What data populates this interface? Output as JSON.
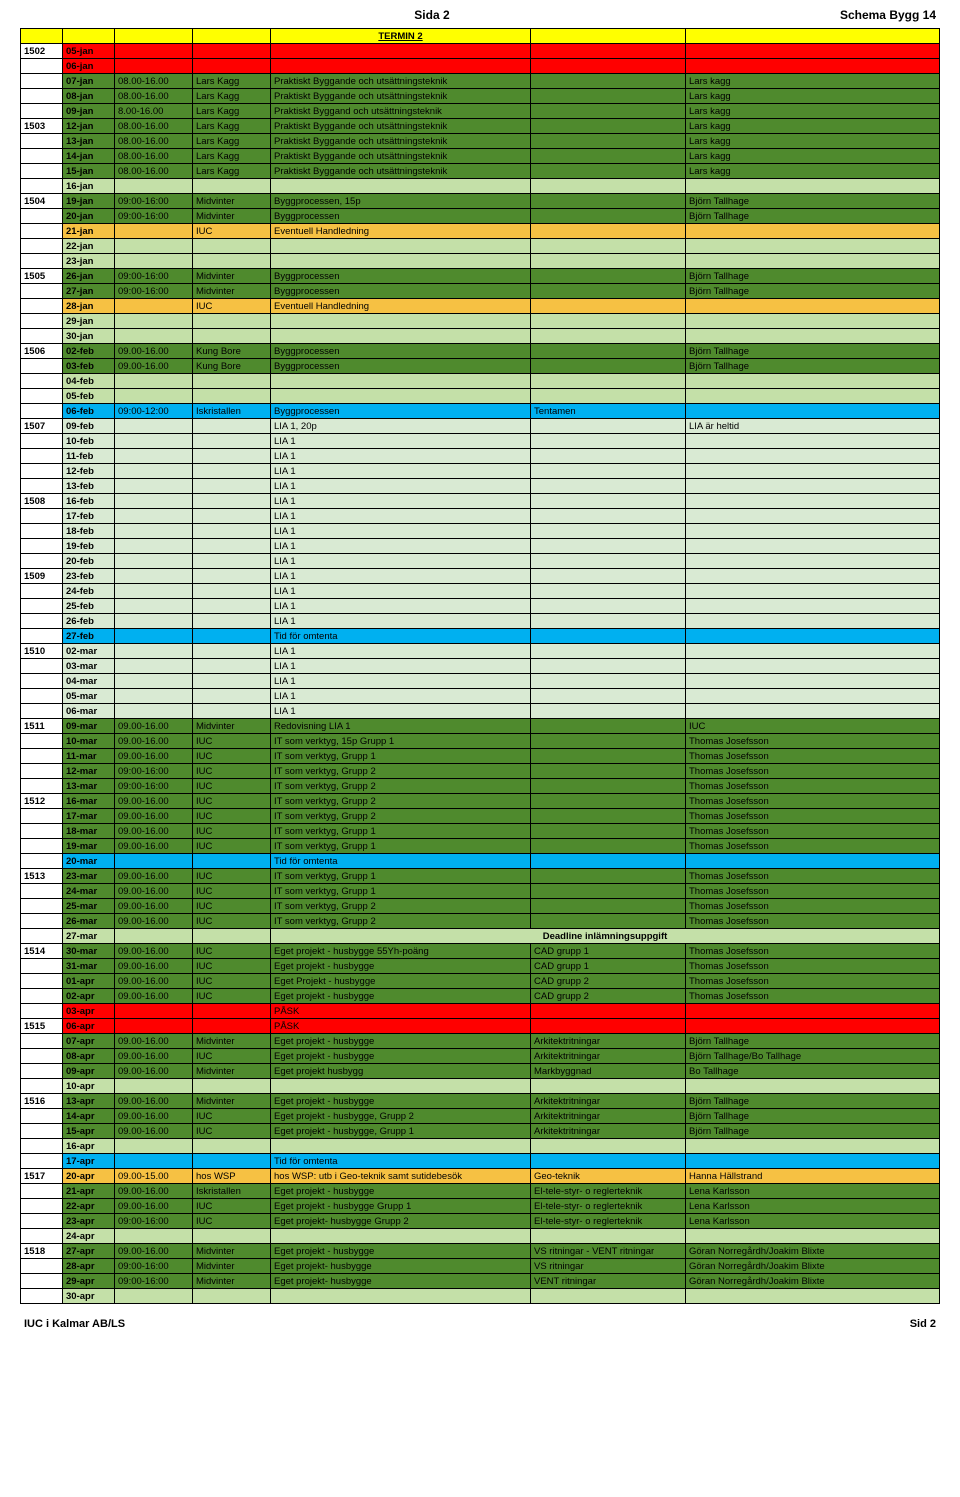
{
  "header": {
    "left": "",
    "center": "Sida 2",
    "right": "Schema Bygg 14"
  },
  "footer": {
    "left": "IUC i Kalmar AB/LS",
    "right": "Sid 2"
  },
  "termin_label": "TERMIN 2",
  "colors": {
    "red": "#ff0000",
    "yellow": "#ffff00",
    "orange": "#f6c143",
    "darkgreen": "#4f8a2d",
    "lightgreen": "#c4e0a8",
    "palegreen": "#d9ead3",
    "blue": "#00b0f0",
    "white": "#ffffff"
  },
  "rows": [
    {
      "week": "1502",
      "date": "05-jan",
      "bg": "red"
    },
    {
      "date": "06-jan",
      "bg": "red"
    },
    {
      "date": "07-jan",
      "time": "08.00-16.00",
      "room": "Lars Kagg",
      "subject": "Praktiskt Byggande och utsättningsteknik",
      "teacher": "Lars kagg",
      "bg": "darkgreen"
    },
    {
      "date": "08-jan",
      "time": "08.00-16.00",
      "room": "Lars Kagg",
      "subject": "Praktiskt Byggande och utsättningsteknik",
      "teacher": "Lars kagg",
      "bg": "darkgreen"
    },
    {
      "date": "09-jan",
      "time": "8.00-16.00",
      "room": "Lars Kagg",
      "subject": "Praktiskt Byggand och utsättningsteknik",
      "teacher": "Lars kagg",
      "bg": "darkgreen"
    },
    {
      "week": "1503",
      "date": "12-jan",
      "time": "08.00-16.00",
      "room": "Lars Kagg",
      "subject": "Praktiskt Byggande och utsättningsteknik",
      "teacher": "Lars kagg",
      "bg": "darkgreen"
    },
    {
      "date": "13-jan",
      "time": "08.00-16.00",
      "room": "Lars Kagg",
      "subject": "Praktiskt Byggande och utsättningsteknik",
      "teacher": "Lars kagg",
      "bg": "darkgreen"
    },
    {
      "date": "14-jan",
      "time": "08.00-16.00",
      "room": "Lars Kagg",
      "subject": "Praktiskt Byggande och utsättningsteknik",
      "teacher": "Lars kagg",
      "bg": "darkgreen"
    },
    {
      "date": "15-jan",
      "time": "08.00-16.00",
      "room": "Lars Kagg",
      "subject": "Praktiskt Byggande och utsättningsteknik",
      "teacher": "Lars kagg",
      "bg": "darkgreen"
    },
    {
      "date": "16-jan",
      "bg": "lightgreen"
    },
    {
      "week": "1504",
      "date": "19-jan",
      "time": "09:00-16:00",
      "room": "Midvinter",
      "subject": "Byggprocessen, 15p",
      "teacher": "Björn Tallhage",
      "bg": "darkgreen"
    },
    {
      "date": "20-jan",
      "time": "09:00-16:00",
      "room": "Midvinter",
      "subject": "Byggprocessen",
      "teacher": "Björn Tallhage",
      "bg": "darkgreen"
    },
    {
      "date": "21-jan",
      "room": "IUC",
      "subject": "Eventuell Handledning",
      "bg": "orange"
    },
    {
      "date": "22-jan",
      "bg": "lightgreen"
    },
    {
      "date": "23-jan",
      "bg": "lightgreen"
    },
    {
      "week": "1505",
      "date": "26-jan",
      "time": "09:00-16:00",
      "room": "Midvinter",
      "subject": "Byggprocessen",
      "teacher": "Björn Tallhage",
      "bg": "darkgreen"
    },
    {
      "date": "27-jan",
      "time": "09:00-16:00",
      "room": "Midvinter",
      "subject": "Byggprocessen",
      "teacher": "Björn Tallhage",
      "bg": "darkgreen"
    },
    {
      "date": "28-jan",
      "room": "IUC",
      "subject": "Eventuell Handledning",
      "bg": "orange"
    },
    {
      "date": "29-jan",
      "bg": "lightgreen"
    },
    {
      "date": "30-jan",
      "bg": "lightgreen"
    },
    {
      "week": "1506",
      "date": "02-feb",
      "time": "09.00-16.00",
      "room": "Kung Bore",
      "subject": "Byggprocessen",
      "teacher": "Björn Tallhage",
      "bg": "darkgreen"
    },
    {
      "date": "03-feb",
      "time": "09.00-16.00",
      "room": "Kung Bore",
      "subject": "Byggprocessen",
      "teacher": "Björn Tallhage",
      "bg": "darkgreen"
    },
    {
      "date": "04-feb",
      "bg": "lightgreen"
    },
    {
      "date": "05-feb",
      "bg": "lightgreen"
    },
    {
      "date": "06-feb",
      "time": "09:00-12:00",
      "room": "Iskristallen",
      "subject": "Byggprocessen",
      "note": "Tentamen",
      "bg": "blue"
    },
    {
      "week": "1507",
      "date": "09-feb",
      "subject": "LIA 1, 20p",
      "teacher": "LIA är heltid",
      "bg": "palegreen"
    },
    {
      "date": "10-feb",
      "subject": "LIA 1",
      "bg": "palegreen"
    },
    {
      "date": "11-feb",
      "subject": "LIA 1",
      "bg": "palegreen"
    },
    {
      "date": "12-feb",
      "subject": "LIA 1",
      "bg": "palegreen"
    },
    {
      "date": "13-feb",
      "subject": "LIA 1",
      "bg": "palegreen"
    },
    {
      "week": "1508",
      "date": "16-feb",
      "subject": "LIA 1",
      "bg": "palegreen"
    },
    {
      "date": "17-feb",
      "subject": "LIA 1",
      "bg": "palegreen"
    },
    {
      "date": "18-feb",
      "subject": "LIA 1",
      "bg": "palegreen"
    },
    {
      "date": "19-feb",
      "subject": "LIA 1",
      "bg": "palegreen"
    },
    {
      "date": "20-feb",
      "subject": "LIA 1",
      "bg": "palegreen"
    },
    {
      "week": "1509",
      "date": "23-feb",
      "subject": "LIA 1",
      "bg": "palegreen"
    },
    {
      "date": "24-feb",
      "subject": "LIA 1",
      "bg": "palegreen"
    },
    {
      "date": "25-feb",
      "subject": "LIA 1",
      "bg": "palegreen"
    },
    {
      "date": "26-feb",
      "subject": "LIA 1",
      "bg": "palegreen"
    },
    {
      "date": "27-feb",
      "subject": "Tid för omtenta",
      "bg": "blue"
    },
    {
      "week": "1510",
      "date": "02-mar",
      "subject": "LIA 1",
      "bg": "palegreen"
    },
    {
      "date": "03-mar",
      "subject": "LIA 1",
      "bg": "palegreen"
    },
    {
      "date": "04-mar",
      "subject": "LIA 1",
      "bg": "palegreen"
    },
    {
      "date": "05-mar",
      "subject": "LIA 1",
      "bg": "palegreen"
    },
    {
      "date": "06-mar",
      "subject": "LIA 1",
      "bg": "palegreen"
    },
    {
      "week": "1511",
      "date": "09-mar",
      "time": "09.00-16.00",
      "room": "Midvinter",
      "subject": "Redovisning LIA 1",
      "teacher": "IUC",
      "bg": "darkgreen"
    },
    {
      "date": "10-mar",
      "time": "09.00-16.00",
      "room": "IUC",
      "subject": "IT som verktyg, 15p Grupp 1",
      "teacher": "Thomas Josefsson",
      "bg": "darkgreen"
    },
    {
      "date": "11-mar",
      "time": "09.00-16.00",
      "room": "IUC",
      "subject": "IT som verktyg, Grupp 1",
      "teacher": "Thomas Josefsson",
      "bg": "darkgreen"
    },
    {
      "date": "12-mar",
      "time": "09:00-16:00",
      "room": "IUC",
      "subject": "IT som verktyg, Grupp 2",
      "teacher": "Thomas Josefsson",
      "bg": "darkgreen"
    },
    {
      "date": "13-mar",
      "time": "09:00-16:00",
      "room": "IUC",
      "subject": "IT som verktyg, Grupp 2",
      "teacher": "Thomas Josefsson",
      "bg": "darkgreen"
    },
    {
      "week": "1512",
      "date": "16-mar",
      "time": "09.00-16.00",
      "room": "IUC",
      "subject": "IT som verktyg, Grupp 2",
      "teacher": "Thomas Josefsson",
      "bg": "darkgreen"
    },
    {
      "date": "17-mar",
      "time": "09.00-16.00",
      "room": "IUC",
      "subject": "IT som verktyg, Grupp 2",
      "teacher": "Thomas Josefsson",
      "bg": "darkgreen"
    },
    {
      "date": "18-mar",
      "time": "09.00-16.00",
      "room": "IUC",
      "subject": "IT som verktyg, Grupp 1",
      "teacher": "Thomas Josefsson",
      "bg": "darkgreen"
    },
    {
      "date": "19-mar",
      "time": "09.00-16.00",
      "room": "IUC",
      "subject": "IT som verktyg, Grupp 1",
      "teacher": "Thomas Josefsson",
      "bg": "darkgreen"
    },
    {
      "date": "20-mar",
      "subject": "Tid för omtenta",
      "bg": "blue"
    },
    {
      "week": "1513",
      "date": "23-mar",
      "time": "09.00-16.00",
      "room": "IUC",
      "subject": "IT som verktyg, Grupp 1",
      "teacher": "Thomas Josefsson",
      "bg": "darkgreen"
    },
    {
      "date": "24-mar",
      "time": "09.00-16.00",
      "room": "IUC",
      "subject": "IT som verktyg, Grupp 1",
      "teacher": "Thomas Josefsson",
      "bg": "darkgreen"
    },
    {
      "date": "25-mar",
      "time": "09.00-16.00",
      "room": "IUC",
      "subject": "IT som verktyg, Grupp 2",
      "teacher": "Thomas Josefsson",
      "bg": "darkgreen"
    },
    {
      "date": "26-mar",
      "time": "09.00-16.00",
      "room": "IUC",
      "subject": "IT som verktyg, Grupp 2",
      "teacher": "Thomas Josefsson",
      "bg": "darkgreen"
    },
    {
      "date": "27-mar",
      "bg": "lightgreen",
      "deadline": "Deadline inlämningsuppgift"
    },
    {
      "week": "1514",
      "date": "30-mar",
      "time": "09.00-16.00",
      "room": "IUC",
      "subject": "Eget projekt - husbygge 55Yh-poäng",
      "note": "CAD grupp 1",
      "teacher": "Thomas Josefsson",
      "bg": "darkgreen"
    },
    {
      "date": "31-mar",
      "time": "09.00-16.00",
      "room": "IUC",
      "subject": "Eget projekt - husbygge",
      "note": "CAD grupp 1",
      "teacher": "Thomas Josefsson",
      "bg": "darkgreen"
    },
    {
      "date": "01-apr",
      "time": "09.00-16.00",
      "room": "IUC",
      "subject": "Eget Projekt - husbygge",
      "note": "CAD grupp 2",
      "teacher": "Thomas Josefsson",
      "bg": "darkgreen"
    },
    {
      "date": "02-apr",
      "time": "09.00-16.00",
      "room": "IUC",
      "subject": "Eget projekt - husbygge",
      "note": "CAD grupp 2",
      "teacher": "Thomas Josefsson",
      "bg": "darkgreen"
    },
    {
      "date": "03-apr",
      "subject": "PÅSK",
      "bg": "red"
    },
    {
      "week": "1515",
      "date": "06-apr",
      "subject": "PÅSK",
      "bg": "red"
    },
    {
      "date": "07-apr",
      "time": "09.00-16.00",
      "room": "Midvinter",
      "subject": "Eget projekt - husbygge",
      "note": "Arkitektritningar",
      "teacher": "Björn Tallhage",
      "bg": "darkgreen"
    },
    {
      "date": "08-apr",
      "time": "09.00-16.00",
      "room": "IUC",
      "subject": "Eget projekt - husbygge",
      "note": "Arkitektritningar",
      "teacher": "Björn Tallhage/Bo Tallhage",
      "bg": "darkgreen"
    },
    {
      "date": "09-apr",
      "time": "09.00-16.00",
      "room": "Midvinter",
      "subject": "Eget projekt husbygg",
      "note": "Markbyggnad",
      "teacher": "Bo Tallhage",
      "bg": "darkgreen"
    },
    {
      "date": "10-apr",
      "bg": "lightgreen"
    },
    {
      "week": "1516",
      "date": "13-apr",
      "time": "09.00-16.00",
      "room": "Midvinter",
      "subject": "Eget projekt - husbygge",
      "note": "Arkitektritningar",
      "teacher": "Björn Tallhage",
      "bg": "darkgreen"
    },
    {
      "date": "14-apr",
      "time": "09.00-16.00",
      "room": "IUC",
      "subject": "Eget projekt - husbygge, Grupp 2",
      "note": "Arkitektritningar",
      "teacher": "Björn Tallhage",
      "bg": "darkgreen"
    },
    {
      "date": "15-apr",
      "time": "09.00-16.00",
      "room": "IUC",
      "subject": "Eget projekt - husbygge, Grupp 1",
      "note": "Arkitektritningar",
      "teacher": "Björn Tallhage",
      "bg": "darkgreen"
    },
    {
      "date": "16-apr",
      "bg": "lightgreen"
    },
    {
      "date": "17-apr",
      "subject": "Tid för omtenta",
      "bg": "blue"
    },
    {
      "week": "1517",
      "date": "20-apr",
      "time": "09.00-15.00",
      "room": "hos WSP",
      "subject": "hos WSP: utb i Geo-teknik samt sutidebesök",
      "note": "Geo-teknik",
      "teacher": "Hanna Hällstrand",
      "bg": "orange"
    },
    {
      "date": "21-apr",
      "time": "09.00-16.00",
      "room": "Iskristallen",
      "subject": "Eget projekt - husbygge",
      "note": "El-tele-styr- o reglerteknik",
      "teacher": "Lena Karlsson",
      "bg": "darkgreen"
    },
    {
      "date": "22-apr",
      "time": "09.00-16.00",
      "room": "IUC",
      "subject": "Eget projekt - husbygge Grupp 1",
      "note": "El-tele-styr- o reglerteknik",
      "teacher": "Lena Karlsson",
      "bg": "darkgreen"
    },
    {
      "date": "23-apr",
      "time": "09:00-16:00",
      "room": "IUC",
      "subject": "Eget projekt- husbygge Grupp 2",
      "note": "El-tele-styr- o reglerteknik",
      "teacher": "Lena Karlsson",
      "bg": "darkgreen"
    },
    {
      "date": "24-apr",
      "bg": "lightgreen"
    },
    {
      "week": "1518",
      "date": "27-apr",
      "time": "09.00-16.00",
      "room": "Midvinter",
      "subject": "Eget projekt - husbygge",
      "note": "VS ritningar - VENT ritningar",
      "teacher": "Göran Norregårdh/Joakim Blixte",
      "bg": "darkgreen"
    },
    {
      "date": "28-apr",
      "time": "09:00-16:00",
      "room": "Midvinter",
      "subject": "Eget projekt- husbygge",
      "note": "VS ritningar",
      "teacher": "Göran Norregårdh/Joakim Blixte",
      "bg": "darkgreen"
    },
    {
      "date": "29-apr",
      "time": "09:00-16:00",
      "room": "Midvinter",
      "subject": "Eget projekt- husbygge",
      "note": "VENT ritningar",
      "teacher": "Göran Norregårdh/Joakim Blixte",
      "bg": "darkgreen"
    },
    {
      "date": "30-apr",
      "bg": "lightgreen"
    }
  ]
}
